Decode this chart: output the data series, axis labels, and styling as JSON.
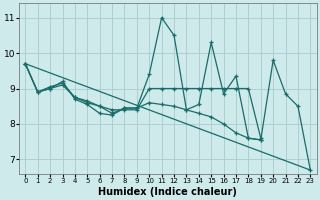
{
  "xlabel": "Humidex (Indice chaleur)",
  "background_color": "#ceeaea",
  "grid_color": "#aacccc",
  "line_color": "#1a6b6b",
  "x": [
    0,
    1,
    2,
    3,
    4,
    5,
    6,
    7,
    8,
    9,
    10,
    11,
    12,
    13,
    14,
    15,
    16,
    17,
    18,
    19,
    20,
    21,
    22,
    23
  ],
  "line1": [
    9.7,
    8.9,
    9.0,
    9.2,
    8.7,
    8.55,
    8.3,
    8.25,
    8.45,
    8.45,
    9.4,
    11.0,
    10.5,
    8.4,
    8.55,
    10.3,
    8.85,
    9.35,
    7.6,
    7.55,
    9.8,
    8.85,
    8.5,
    6.7
  ],
  "line2_x": [
    0,
    1,
    2,
    3,
    4,
    5,
    6,
    7,
    8,
    9,
    10,
    11,
    12,
    13,
    14,
    15,
    16,
    17,
    18,
    19
  ],
  "line2_y": [
    9.7,
    8.9,
    9.0,
    9.1,
    8.75,
    8.6,
    8.5,
    8.4,
    8.4,
    8.4,
    9.0,
    9.0,
    9.0,
    9.0,
    9.0,
    9.0,
    9.0,
    9.0,
    9.0,
    7.6
  ],
  "line3_x": [
    0,
    1,
    2,
    3,
    4,
    5,
    6,
    7,
    8,
    9,
    10,
    11,
    12,
    13,
    14,
    15,
    16,
    17,
    18,
    19
  ],
  "line3_y": [
    9.7,
    8.9,
    9.05,
    9.15,
    8.75,
    8.65,
    8.5,
    8.3,
    8.45,
    8.45,
    8.6,
    8.55,
    8.5,
    8.4,
    8.3,
    8.2,
    8.0,
    7.75,
    7.6,
    7.55
  ],
  "trend_x": [
    0,
    23
  ],
  "trend_y": [
    9.7,
    6.7
  ],
  "xlim": [
    -0.5,
    23.5
  ],
  "ylim": [
    6.6,
    11.4
  ],
  "yticks": [
    7,
    8,
    9,
    10,
    11
  ],
  "xticks": [
    0,
    1,
    2,
    3,
    4,
    5,
    6,
    7,
    8,
    9,
    10,
    11,
    12,
    13,
    14,
    15,
    16,
    17,
    18,
    19,
    20,
    21,
    22,
    23
  ]
}
